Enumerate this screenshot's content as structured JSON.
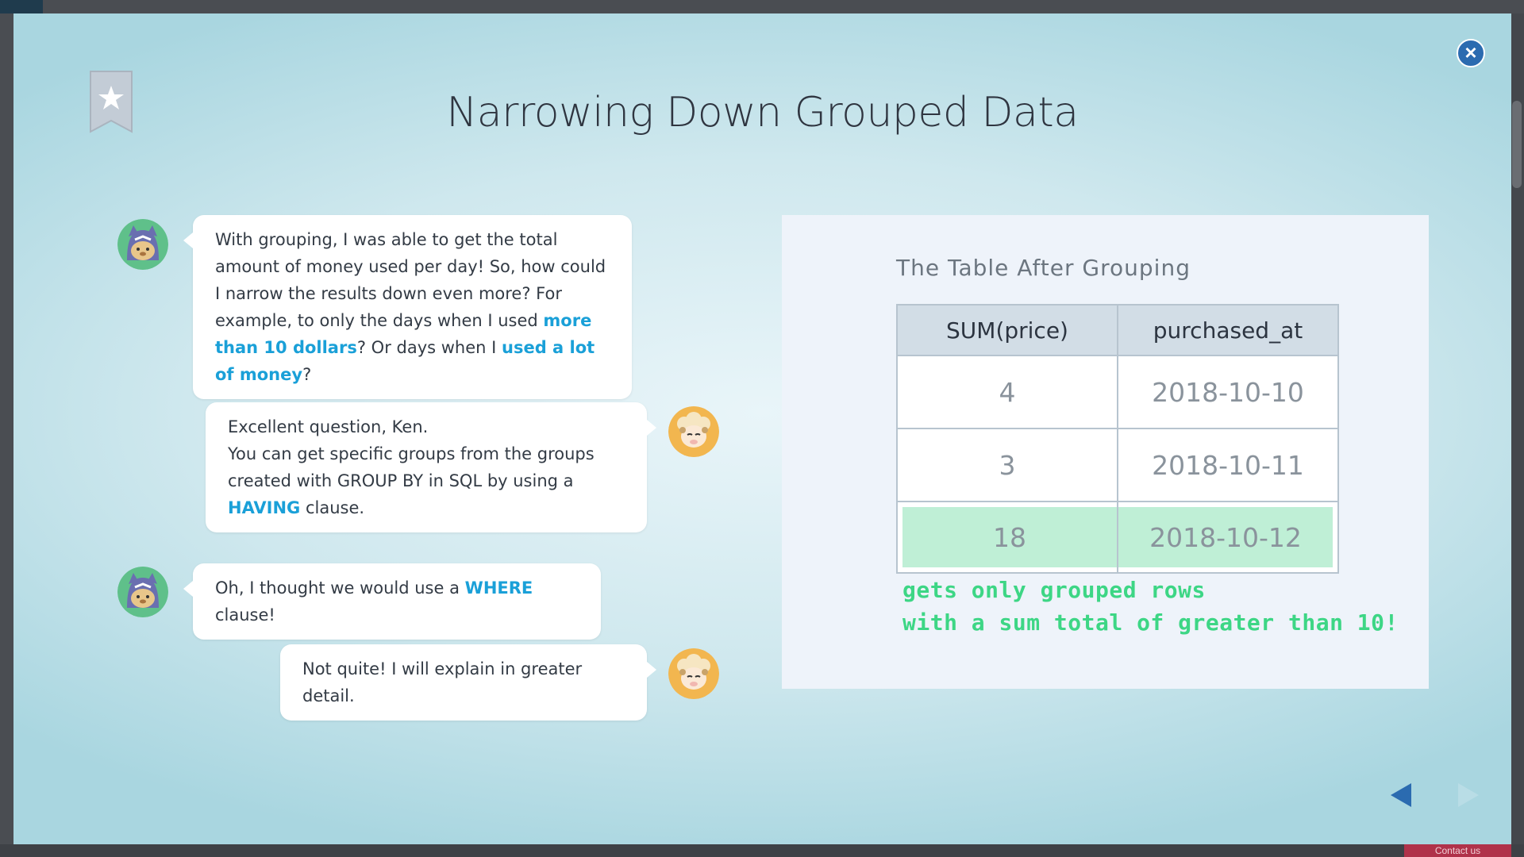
{
  "lesson": {
    "title": "Narrowing Down Grouped Data"
  },
  "dialogue": [
    {
      "speaker": "ken",
      "parts": [
        {
          "text": "With grouping, I was able to get the total amount of money used per day! So, how could I narrow the results down even more? For example, to only the days when I used ",
          "hl": false
        },
        {
          "text": "more than 10 dollars",
          "hl": true
        },
        {
          "text": "? Or days when I ",
          "hl": false
        },
        {
          "text": "used a lot of money",
          "hl": true
        },
        {
          "text": "?",
          "hl": false
        }
      ]
    },
    {
      "speaker": "sheep",
      "line1": "Excellent question, Ken.",
      "line2": "You can get specific groups from the groups created with GROUP BY in SQL by using a ",
      "keyword": "HAVING",
      "after": " clause."
    },
    {
      "speaker": "ken",
      "before": "Oh, I thought we would use a ",
      "keyword": "WHERE",
      "after": " clause!"
    },
    {
      "speaker": "sheep",
      "text": "Not quite! I will explain in greater detail."
    }
  ],
  "table_panel": {
    "title": "The Table After Grouping",
    "columns": [
      "SUM(price)",
      "purchased_at"
    ],
    "rows": [
      {
        "sum": "4",
        "date": "2018-10-10"
      },
      {
        "sum": "3",
        "date": "2018-10-11"
      },
      {
        "sum": "18",
        "date": "2018-10-12"
      }
    ],
    "note_line1": "gets only grouped rows",
    "note_line2": "with a sum total of greater than 10!"
  },
  "footer": {
    "contact_label": "Contact us"
  },
  "colors": {
    "highlight": "#1aa0d8",
    "note": "#3dd685",
    "highlight_row": "#bfefd6",
    "accent": "#2b6bb0"
  }
}
